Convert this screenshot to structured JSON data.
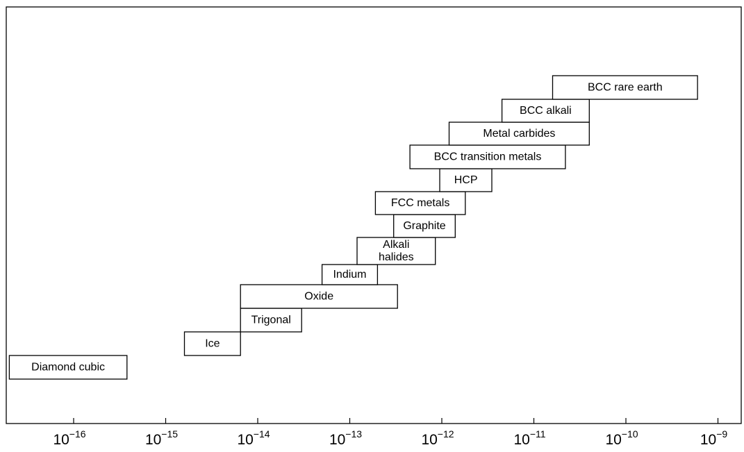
{
  "chart_data": {
    "type": "bar",
    "orientation": "horizontal-range",
    "x_scale": "log",
    "xlim": [
      1.2e-17,
      1.5e-09
    ],
    "x_ticks": [
      {
        "value": 1e-16,
        "base": "10",
        "exp": "−16"
      },
      {
        "value": 1e-15,
        "base": "10",
        "exp": "−15"
      },
      {
        "value": 1e-14,
        "base": "10",
        "exp": "−14"
      },
      {
        "value": 1e-13,
        "base": "10",
        "exp": "−13"
      },
      {
        "value": 1e-12,
        "base": "10",
        "exp": "−12"
      },
      {
        "value": 1e-11,
        "base": "10",
        "exp": "−11"
      },
      {
        "value": 1e-10,
        "base": "10",
        "exp": "−10"
      },
      {
        "value": 1e-09,
        "base": "10",
        "exp": "−9"
      }
    ],
    "bars": [
      {
        "label": "Diamond cubic",
        "low": 2e-17,
        "high": 3.8e-16
      },
      {
        "label": "Ice",
        "low": 1.6e-15,
        "high": 6.5e-15
      },
      {
        "label": "Trigonal",
        "low": 6.5e-15,
        "high": 3e-14
      },
      {
        "label": "Oxide",
        "low": 6.5e-15,
        "high": 3.3e-13
      },
      {
        "label": "Indium",
        "low": 5e-14,
        "high": 2e-13
      },
      {
        "label": "Alkali\nhalides",
        "low": 1.2e-13,
        "high": 8.5e-13
      },
      {
        "label": "Graphite",
        "low": 3e-13,
        "high": 1.4e-12
      },
      {
        "label": "FCC metals",
        "low": 1.9e-13,
        "high": 1.8e-12
      },
      {
        "label": "HCP",
        "low": 9.5e-13,
        "high": 3.5e-12
      },
      {
        "label": "BCC transition metals",
        "low": 4.5e-13,
        "high": 2.2e-11
      },
      {
        "label": "Metal carbides",
        "low": 1.2e-12,
        "high": 4e-11
      },
      {
        "label": "BCC alkali",
        "low": 4.5e-12,
        "high": 4e-11
      },
      {
        "label": "BCC rare earth",
        "low": 1.6e-11,
        "high": 6e-10
      }
    ]
  }
}
